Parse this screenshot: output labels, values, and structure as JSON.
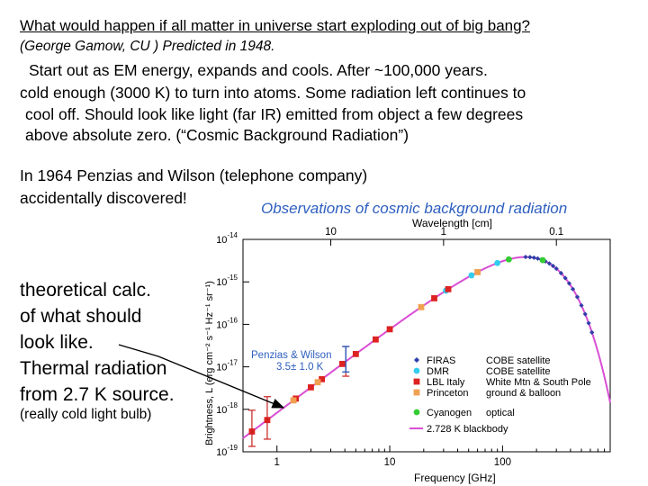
{
  "slide": {
    "title": "What would happen if all matter in universe start exploding out of big bang?",
    "subtitle": "(George Gamow, CU ) Predicted in 1948.",
    "paragraph": [
      "Start out as EM energy, expands and cools. After ~100,000 years.",
      "cold enough (3000 K) to turn into atoms.  Some radiation left continues to",
      "cool off.  Should look like light (far IR)  emitted from object a few degrees",
      "above absolute zero. (“Cosmic Background Radiation”)"
    ],
    "discovery": [
      "In 1964 Penzias and Wilson (telephone company)",
      "accidentally discovered!"
    ],
    "observations_caption": "Observations of cosmic background radiation",
    "theory": [
      "theoretical calc.",
      "of what should",
      "look like.",
      "Thermal radiation",
      "from 2.7 K source."
    ],
    "bulb_note": "(really cold light bulb)"
  },
  "chart_data": {
    "type": "scatter",
    "title": "",
    "xlabel": "Frequency [GHz]",
    "x_top_label": "Wavelength [cm]",
    "ylabel_text": "Brightness, L (erg cm⁻² s⁻¹ Hz⁻¹ sr⁻¹)",
    "x_scale": "log",
    "y_scale": "log",
    "xlim": [
      0.5,
      900
    ],
    "ylim": [
      1e-19,
      1e-14
    ],
    "x_ticks": [
      {
        "v": 1,
        "label": "1"
      },
      {
        "v": 10,
        "label": "10"
      },
      {
        "v": 100,
        "label": "100"
      }
    ],
    "top_ticks": [
      {
        "v": 3,
        "label": "10"
      },
      {
        "v": 30,
        "label": "1"
      },
      {
        "v": 300,
        "label": "0.1"
      }
    ],
    "y_ticks": [
      {
        "v": -14,
        "base": "10",
        "exp": "-14"
      },
      {
        "v": -15,
        "base": "10",
        "exp": "-15"
      },
      {
        "v": -16,
        "base": "10",
        "exp": "-16"
      },
      {
        "v": -17,
        "base": "10",
        "exp": "-17"
      },
      {
        "v": -18,
        "base": "10",
        "exp": "-18"
      },
      {
        "v": -19,
        "base": "10",
        "exp": "-19"
      }
    ],
    "blackbody": {
      "name": "2.728 K blackbody",
      "color": "#d94fd4",
      "temperature": 2.728
    },
    "series": [
      {
        "name": "FIRAS",
        "note": "COBE satellite",
        "color": "#2f3ea8",
        "marker": "diamond",
        "x": [
          160,
          175,
          190,
          205,
          220,
          240,
          260,
          280,
          300,
          330,
          360,
          390,
          420,
          460,
          500,
          540,
          580,
          620
        ]
      },
      {
        "name": "DMR",
        "note": "COBE satellite",
        "color": "#33ccee",
        "marker": "circle",
        "x": [
          31.5,
          53,
          90
        ]
      },
      {
        "name": "LBL Italy",
        "note": "White Mtn & South Pole",
        "color": "#dd2222",
        "marker": "square",
        "x": [
          0.6,
          0.82,
          1.47,
          2.0,
          2.5,
          3.8,
          5.0,
          7.5,
          10,
          24.8,
          33
        ]
      },
      {
        "name": "Princeton",
        "note": "ground & balloon",
        "color": "#f0a050",
        "marker": "square",
        "x": [
          1.4,
          2.3,
          19,
          60
        ]
      },
      {
        "name": "Cyanogen",
        "note": "optical",
        "color": "#33cc33",
        "marker": "circle",
        "x": [
          113.6,
          227
        ]
      }
    ],
    "annotations": {
      "penzias_label": "Penzias & Wilson",
      "penzias_value": "3.5± 1.0 K",
      "color": "#2e5fbf"
    }
  }
}
